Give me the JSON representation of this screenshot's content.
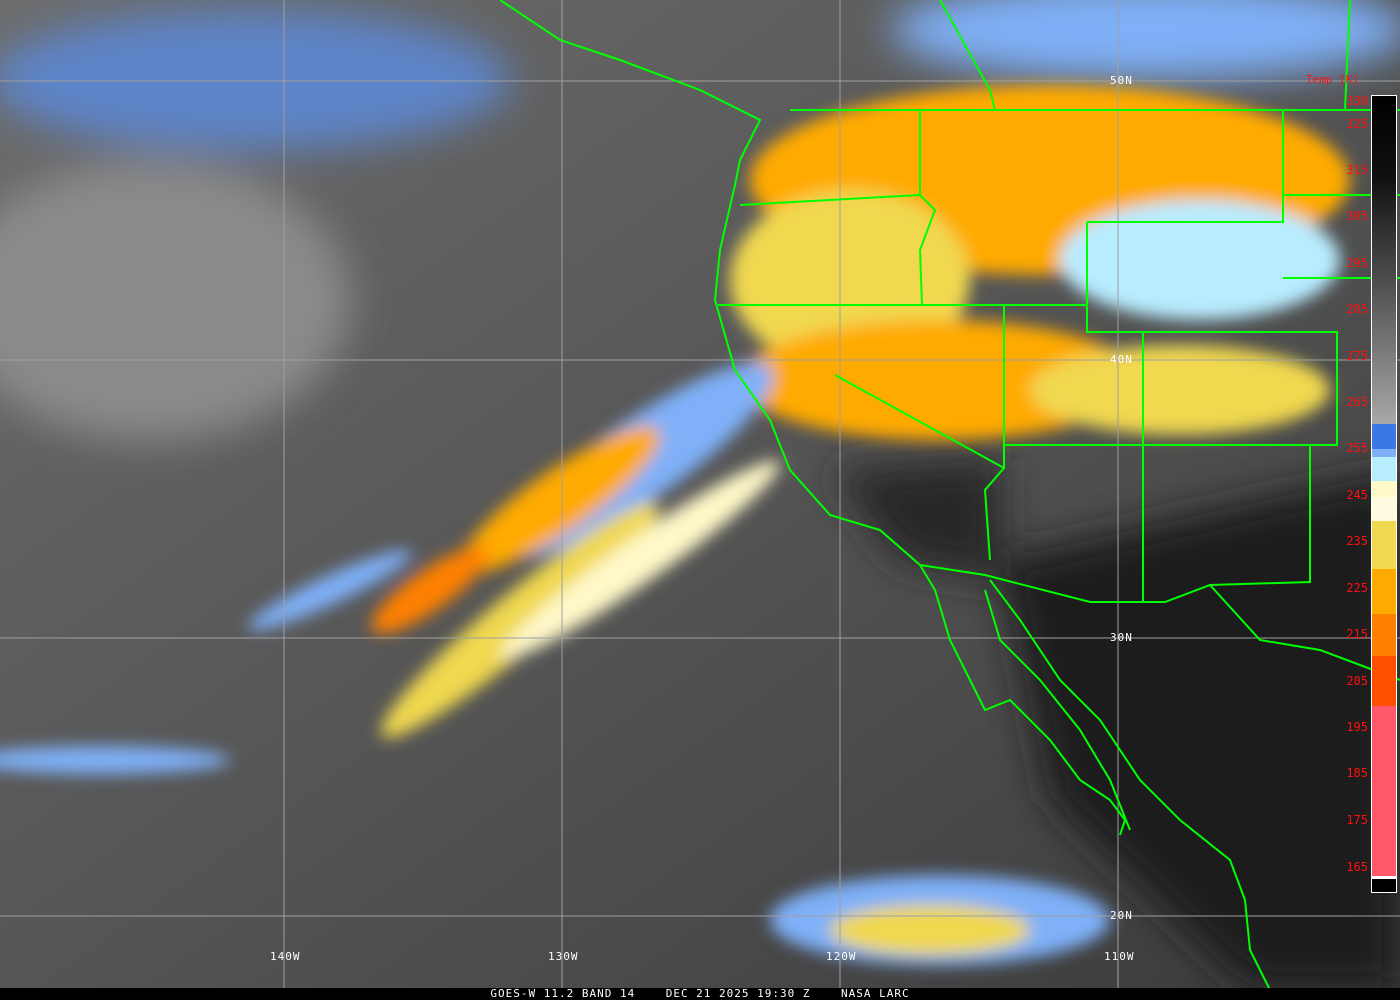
{
  "caption": "GOES-W 11.2 BAND 14    DEC 21 2025 19:30 Z    NASA LARC",
  "legend": {
    "title": "Temp [K]",
    "ticks": [
      "330",
      "325",
      "315",
      "305",
      "295",
      "285",
      "275",
      "265",
      "255",
      "245",
      "235",
      "225",
      "215",
      "205",
      "195",
      "185",
      "175",
      "165"
    ],
    "color_stops": [
      {
        "from": 330,
        "to": 260,
        "color": "gradient #000000 → #a8a8a8"
      },
      {
        "from": 260,
        "to": 255,
        "color": "#3a78e8"
      },
      {
        "from": 255,
        "to": 250,
        "color": "#7fb0f8"
      },
      {
        "from": 250,
        "to": 245,
        "color": "#b8ecff"
      },
      {
        "from": 245,
        "to": 240,
        "color": "#fff8c8"
      },
      {
        "from": 240,
        "to": 230,
        "color": "#f0d850"
      },
      {
        "from": 230,
        "to": 220,
        "color": "#ffaa00"
      },
      {
        "from": 220,
        "to": 210,
        "color": "#ff8000"
      },
      {
        "from": 210,
        "to": 200,
        "color": "#ff5000"
      },
      {
        "from": 200,
        "to": 165,
        "color": "#ff5868"
      }
    ]
  },
  "grid": {
    "longitudes": [
      "140W",
      "130W",
      "120W",
      "110W"
    ],
    "latitudes": [
      "50N",
      "40N",
      "30N",
      "20N"
    ]
  },
  "colors": {
    "coastline": "#00ff00",
    "gridline": "#a0a0a0",
    "label": "#ff0000"
  }
}
